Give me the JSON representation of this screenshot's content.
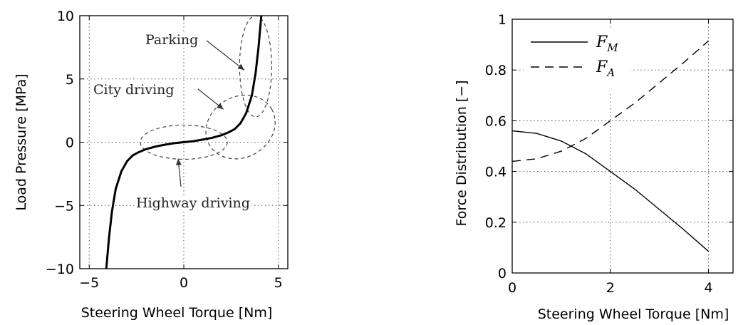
{
  "chart_data": [
    {
      "type": "line",
      "xlabel": "Steering Wheel Torque [Nm]",
      "ylabel": "Load Pressure [MPa]",
      "xlim": [
        -5.5,
        5.5
      ],
      "ylim": [
        -10,
        10
      ],
      "xticks": [
        -5,
        0,
        5
      ],
      "yticks": [
        -10,
        -5,
        0,
        5,
        10
      ],
      "xtick_labels": [
        "−5",
        "0",
        "5"
      ],
      "ytick_labels": [
        "−10",
        "−5",
        "0",
        "5",
        "10"
      ],
      "grid": true,
      "series": [
        {
          "x": [
            -4.1,
            -3.95,
            -3.8,
            -3.6,
            -3.3,
            -3.0,
            -2.7,
            -2.4,
            -2.0,
            -1.5,
            -1.0,
            -0.5,
            0.0,
            0.5,
            1.0,
            1.5,
            2.0,
            2.4,
            2.7,
            3.0,
            3.3,
            3.6,
            3.8,
            3.95,
            4.1
          ],
          "y": [
            -10.0,
            -7.5,
            -5.5,
            -3.7,
            -2.3,
            -1.5,
            -1.05,
            -0.8,
            -0.55,
            -0.35,
            -0.2,
            -0.08,
            0.0,
            0.08,
            0.2,
            0.35,
            0.55,
            0.8,
            1.05,
            1.5,
            2.3,
            3.7,
            5.5,
            7.5,
            10.0
          ],
          "style": "solid"
        }
      ],
      "annotations": [
        {
          "text": "Parking",
          "ellipse": {
            "cx": 3.8,
            "cy": 6.0,
            "rx": 0.85,
            "ry": 4.0
          },
          "arrow_to": [
            3.2,
            5.7
          ]
        },
        {
          "text": "City driving",
          "ellipse": {
            "cx": 3.0,
            "cy": 1.2,
            "rx": 1.9,
            "ry": 2.4,
            "rotate": -30
          },
          "arrow_to": [
            2.1,
            2.6
          ]
        },
        {
          "text": "Highway driving",
          "ellipse": {
            "cx": 0.0,
            "cy": 0.0,
            "rx": 2.3,
            "ry": 1.35
          },
          "arrow_to": [
            -0.3,
            -1.3
          ]
        }
      ]
    },
    {
      "type": "line",
      "xlabel": "Steering Wheel Torque [Nm]",
      "ylabel": "Force Distribution [−]",
      "xlim": [
        0,
        4.5
      ],
      "ylim": [
        0,
        1
      ],
      "xticks": [
        0,
        2,
        4
      ],
      "yticks": [
        0,
        0.2,
        0.4,
        0.6,
        0.8,
        1
      ],
      "xtick_labels": [
        "0",
        "2",
        "4"
      ],
      "ytick_labels": [
        "0",
        "0.2",
        "0.4",
        "0.6",
        "0.8",
        "1"
      ],
      "grid": true,
      "legend_position": "top-left",
      "series": [
        {
          "name": "F",
          "subscript": "M",
          "style": "solid",
          "x": [
            0,
            0.5,
            1.0,
            1.5,
            2.0,
            2.5,
            3.0,
            3.5,
            4.0
          ],
          "y": [
            0.56,
            0.55,
            0.52,
            0.47,
            0.4,
            0.33,
            0.25,
            0.17,
            0.085
          ]
        },
        {
          "name": "F",
          "subscript": "A",
          "style": "dashed",
          "x": [
            0,
            0.5,
            1.0,
            1.5,
            2.0,
            2.5,
            3.0,
            3.5,
            4.0
          ],
          "y": [
            0.44,
            0.45,
            0.48,
            0.53,
            0.6,
            0.67,
            0.75,
            0.83,
            0.915
          ]
        }
      ]
    }
  ]
}
